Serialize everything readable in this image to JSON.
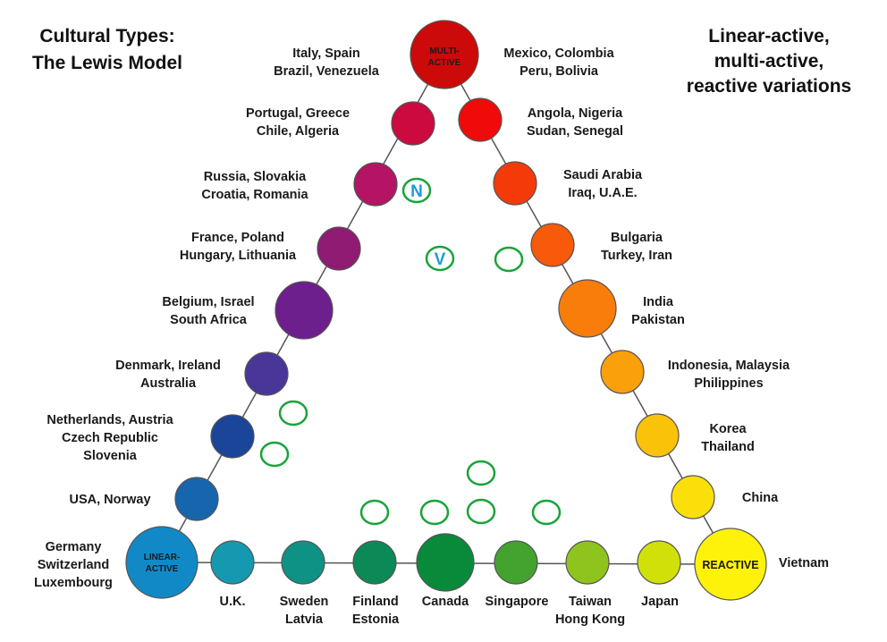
{
  "title": [
    "Cultural Types:",
    "The Lewis Model"
  ],
  "subtitle": [
    "Linear-active,",
    "multi-active,",
    "reactive variations"
  ],
  "apex_nodes": {
    "multi_active": [
      "MULTI-",
      "ACTIVE"
    ],
    "linear_active": [
      "LINEAR-",
      "ACTIVE"
    ],
    "reactive": "REACTIVE"
  },
  "left_side": [
    {
      "lines": [
        "Italy, Spain",
        "Brazil, Venezuela"
      ],
      "color": "#cc0a0a"
    },
    {
      "lines": [
        "Portugal, Greece",
        "Chile, Algeria"
      ],
      "color": "#cc0a3f"
    },
    {
      "lines": [
        "Russia, Slovakia",
        "Croatia, Romania"
      ],
      "color": "#b41463"
    },
    {
      "lines": [
        "France, Poland",
        "Hungary, Lithuania"
      ],
      "color": "#8f1b73"
    },
    {
      "lines": [
        "Belgium, Israel",
        "South Africa"
      ],
      "color": "#6e1f8e"
    },
    {
      "lines": [
        "Denmark, Ireland",
        "Australia"
      ],
      "color": "#4a3599"
    },
    {
      "lines": [
        "Netherlands, Austria",
        "Czech Republic",
        "Slovenia"
      ],
      "color": "#1a4599"
    },
    {
      "lines": [
        "USA, Norway"
      ],
      "color": "#1766ad"
    },
    {
      "lines": [
        "Germany",
        "Switzerland",
        "Luxembourg"
      ],
      "color": "#1289c7"
    }
  ],
  "right_side": [
    {
      "lines": [
        "Mexico, Colombia",
        "Peru, Bolivia"
      ],
      "color": "#cc0a0a"
    },
    {
      "lines": [
        "Angola, Nigeria",
        "Sudan, Senegal"
      ],
      "color": "#f00a0a"
    },
    {
      "lines": [
        "Saudi Arabia",
        "Iraq, U.A.E."
      ],
      "color": "#f53a0a"
    },
    {
      "lines": [
        "Bulgaria",
        "Turkey, Iran"
      ],
      "color": "#f75a0a"
    },
    {
      "lines": [
        "India",
        "Pakistan"
      ],
      "color": "#f87d0a"
    },
    {
      "lines": [
        "Indonesia, Malaysia",
        "Philippines"
      ],
      "color": "#f9a00a"
    },
    {
      "lines": [
        "Korea",
        "Thailand"
      ],
      "color": "#fbc20a"
    },
    {
      "lines": [
        "China"
      ],
      "color": "#fbdf0a"
    },
    {
      "lines": [
        "Vietnam"
      ],
      "color": "#fff20a"
    }
  ],
  "bottom_side": [
    {
      "lines": [
        "U.K."
      ],
      "color": "#1599b0"
    },
    {
      "lines": [
        "Sweden",
        "Latvia"
      ],
      "color": "#0e9285"
    },
    {
      "lines": [
        "Finland",
        "Estonia"
      ],
      "color": "#0b8a57"
    },
    {
      "lines": [
        "Canada"
      ],
      "color": "#088a3a"
    },
    {
      "lines": [
        "Singapore"
      ],
      "color": "#43a32e"
    },
    {
      "lines": [
        "Taiwan",
        "Hong Kong"
      ],
      "color": "#8fc31e"
    },
    {
      "lines": [
        "Japan"
      ],
      "color": "#d2e00a"
    }
  ],
  "markers": {
    "n_label": "N",
    "v_label": "V"
  }
}
